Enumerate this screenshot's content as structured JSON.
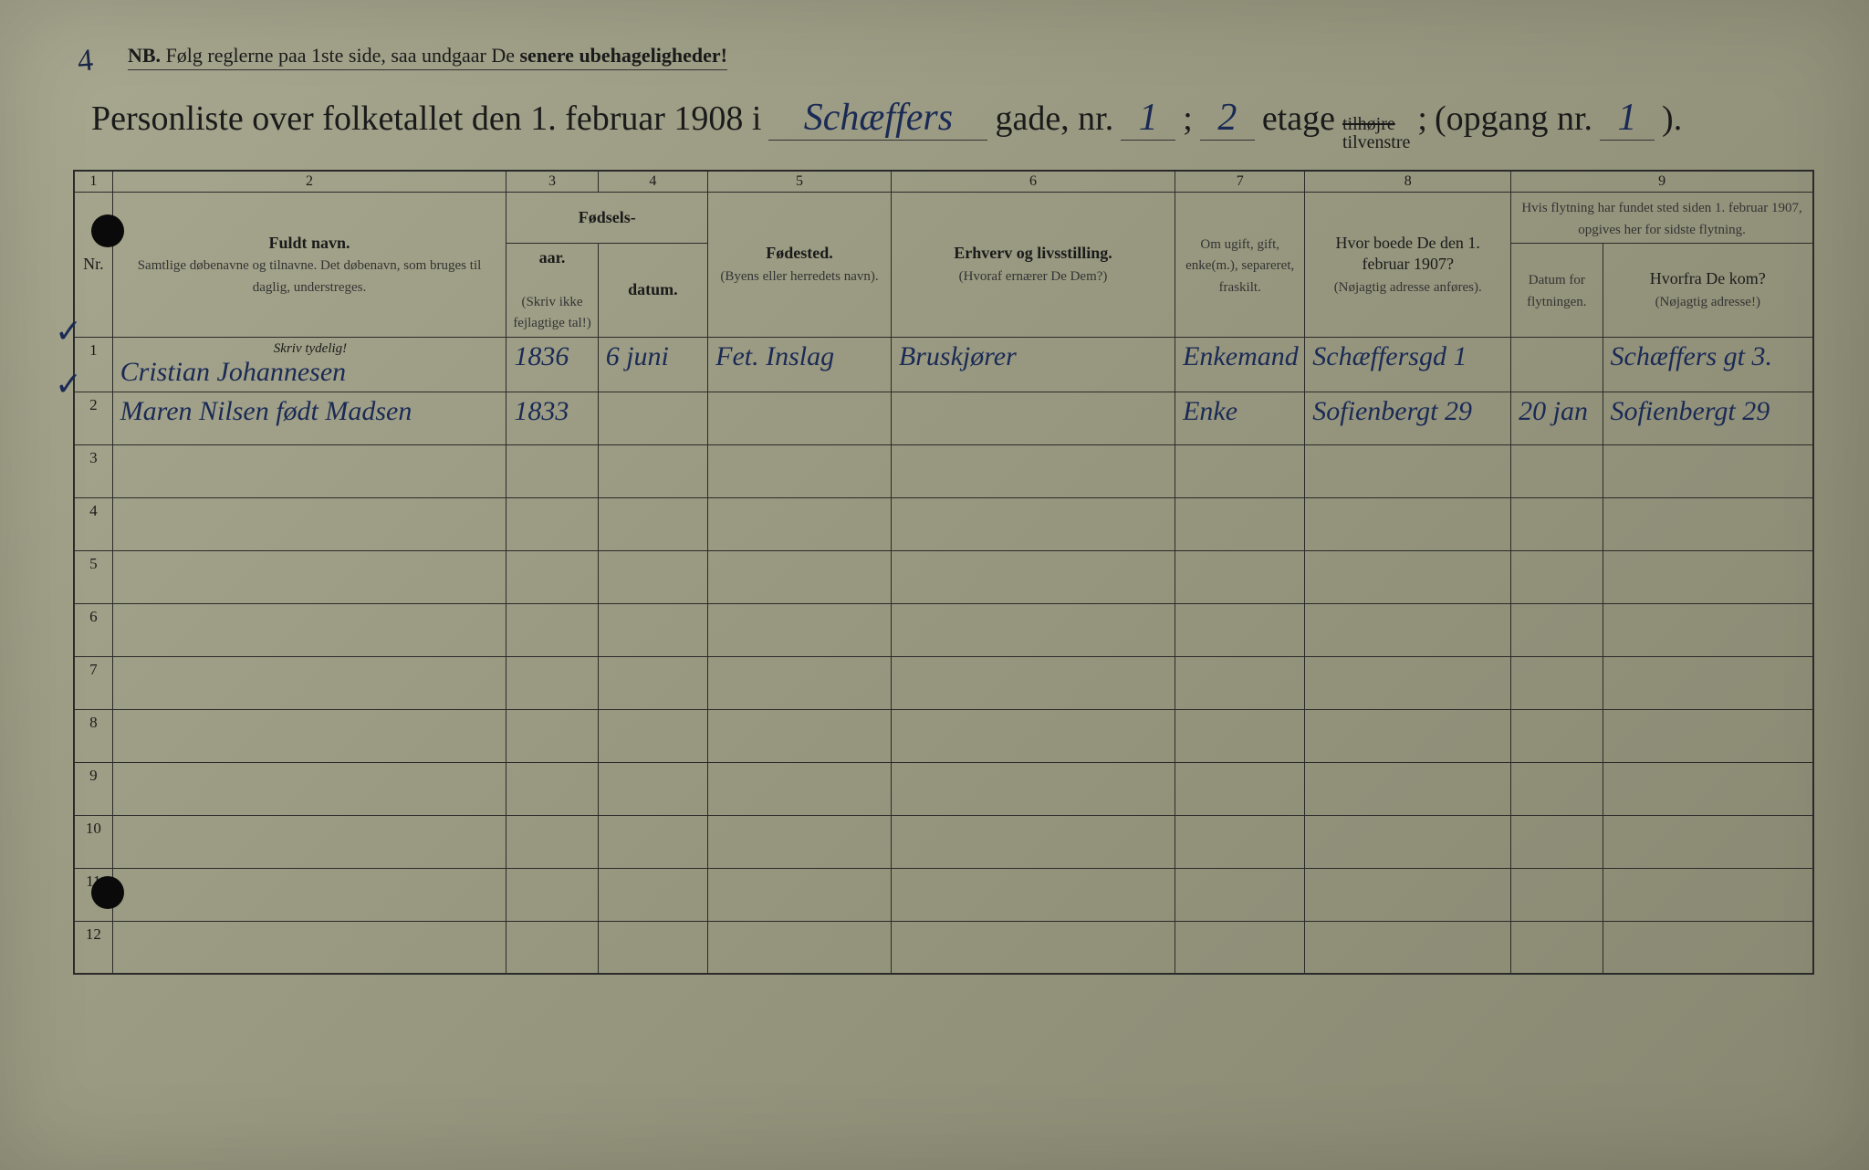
{
  "page_corner_number": "4",
  "nb_text": {
    "prefix": "NB.",
    "body": "Følg reglerne paa 1ste side, saa undgaar De",
    "emphasis": "senere ubehageligheder!"
  },
  "title": {
    "prefix": "Personliste over folketallet den 1. februar 1908 i",
    "street": "Schæffers",
    "gade_label": "gade, nr.",
    "gade_nr": "1",
    "separator": ";",
    "etage_nr": "2",
    "etage_label": "etage",
    "tilhojre": "tilhøjre",
    "tilvenstre": "tilvenstre",
    "opgang_label": "(opgang nr.",
    "opgang_nr": "1",
    "close": ")."
  },
  "col_numbers": [
    "1",
    "2",
    "3",
    "4",
    "5",
    "6",
    "7",
    "8",
    "9"
  ],
  "headers": {
    "nr": "Nr.",
    "name_title": "Fuldt navn.",
    "name_sub": "Samtlige døbenavne og tilnavne. Det døbenavn, som bruges til daglig, understreges.",
    "fodsels": "Fødsels-",
    "aar": "aar.",
    "datum": "datum.",
    "aar_sub": "(Skriv ikke fejlagtige tal!)",
    "fodested": "Fødested.",
    "fodested_sub": "(Byens eller herredets navn).",
    "erhverv": "Erhverv og livsstilling.",
    "erhverv_sub": "(Hvoraf ernærer De Dem?)",
    "status": "Om ugift, gift, enke(m.), separeret, fraskilt.",
    "addr1907": "Hvor boede De den 1. februar 1907?",
    "addr1907_sub": "(Nøjagtig adresse anføres).",
    "moved": "Hvis flytning har fundet sted siden 1. februar 1907, opgives her for sidste flytning.",
    "moved_date": "Datum for flytningen.",
    "moved_from": "Hvorfra De kom?",
    "moved_from_sub": "(Nøjagtig adresse!)",
    "skriv_tydelig": "Skriv tydelig!"
  },
  "rows": [
    {
      "nr": "1",
      "name": "Cristian Johannesen",
      "year": "1836",
      "date": "6 juni",
      "birthplace": "Fet. Inslag",
      "occupation": "Bruskjører",
      "status": "Enkemand",
      "addr1907": "Schæffersgd 1",
      "move_date": "",
      "move_from": "Schæffers gt 3."
    },
    {
      "nr": "2",
      "name": "Maren Nilsen født Madsen",
      "year": "1833",
      "date": "",
      "birthplace": "",
      "occupation": "",
      "status": "Enke",
      "addr1907": "Sofienbergt 29",
      "move_date": "20 jan",
      "move_from": "Sofienbergt 29"
    },
    {
      "nr": "3",
      "name": "",
      "year": "",
      "date": "",
      "birthplace": "",
      "occupation": "",
      "status": "",
      "addr1907": "",
      "move_date": "",
      "move_from": ""
    },
    {
      "nr": "4",
      "name": "",
      "year": "",
      "date": "",
      "birthplace": "",
      "occupation": "",
      "status": "",
      "addr1907": "",
      "move_date": "",
      "move_from": ""
    },
    {
      "nr": "5",
      "name": "",
      "year": "",
      "date": "",
      "birthplace": "",
      "occupation": "",
      "status": "",
      "addr1907": "",
      "move_date": "",
      "move_from": ""
    },
    {
      "nr": "6",
      "name": "",
      "year": "",
      "date": "",
      "birthplace": "",
      "occupation": "",
      "status": "",
      "addr1907": "",
      "move_date": "",
      "move_from": ""
    },
    {
      "nr": "7",
      "name": "",
      "year": "",
      "date": "",
      "birthplace": "",
      "occupation": "",
      "status": "",
      "addr1907": "",
      "move_date": "",
      "move_from": ""
    },
    {
      "nr": "8",
      "name": "",
      "year": "",
      "date": "",
      "birthplace": "",
      "occupation": "",
      "status": "",
      "addr1907": "",
      "move_date": "",
      "move_from": ""
    },
    {
      "nr": "9",
      "name": "",
      "year": "",
      "date": "",
      "birthplace": "",
      "occupation": "",
      "status": "",
      "addr1907": "",
      "move_date": "",
      "move_from": ""
    },
    {
      "nr": "10",
      "name": "",
      "year": "",
      "date": "",
      "birthplace": "",
      "occupation": "",
      "status": "",
      "addr1907": "",
      "move_date": "",
      "move_from": ""
    },
    {
      "nr": "11",
      "name": "",
      "year": "",
      "date": "",
      "birthplace": "",
      "occupation": "",
      "status": "",
      "addr1907": "",
      "move_date": "",
      "move_from": ""
    },
    {
      "nr": "12",
      "name": "",
      "year": "",
      "date": "",
      "birthplace": "",
      "occupation": "",
      "status": "",
      "addr1907": "",
      "move_date": "",
      "move_from": ""
    }
  ],
  "styling": {
    "paper_bg_start": "#a8a890",
    "paper_bg_end": "#888872",
    "ink_color": "#1a2a55",
    "print_color": "#1a1a1a",
    "handwriting_font": "Brush Script MT",
    "print_font": "Georgia",
    "title_fontsize": 38,
    "header_fontsize": 18,
    "handwriting_fontsize": 30,
    "border_color": "#2a2a2a"
  }
}
